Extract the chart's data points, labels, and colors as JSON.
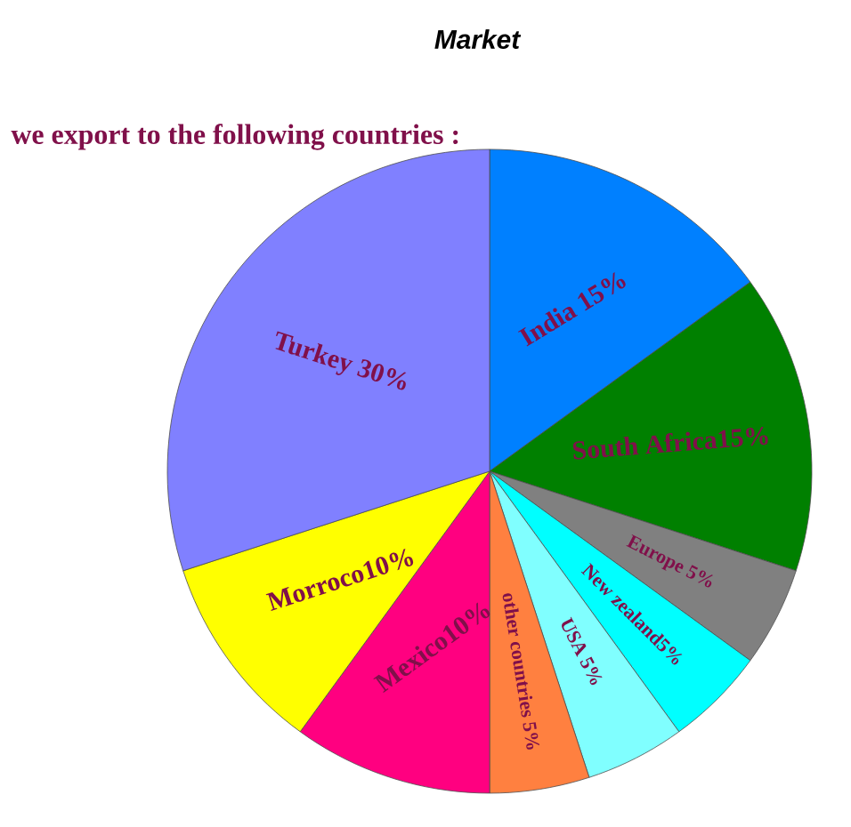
{
  "chart_data": {
    "type": "pie",
    "title": "Market",
    "subtitle": "we export to the following countries :",
    "categories": [
      "India 15%",
      "South Africa15%",
      "Europe 5%",
      "New zealand5%",
      "USA 5%",
      "other countries 5%",
      "Mexico10%",
      "Morroco10%",
      "Turkey 30%"
    ],
    "values": [
      15,
      15,
      5,
      5,
      5,
      5,
      10,
      10,
      30
    ],
    "colors": [
      "#0080ff",
      "#008000",
      "#808080",
      "#00ffff",
      "#80ffff",
      "#ff8040",
      "#ff0080",
      "#ffff00",
      "#8080ff"
    ]
  }
}
